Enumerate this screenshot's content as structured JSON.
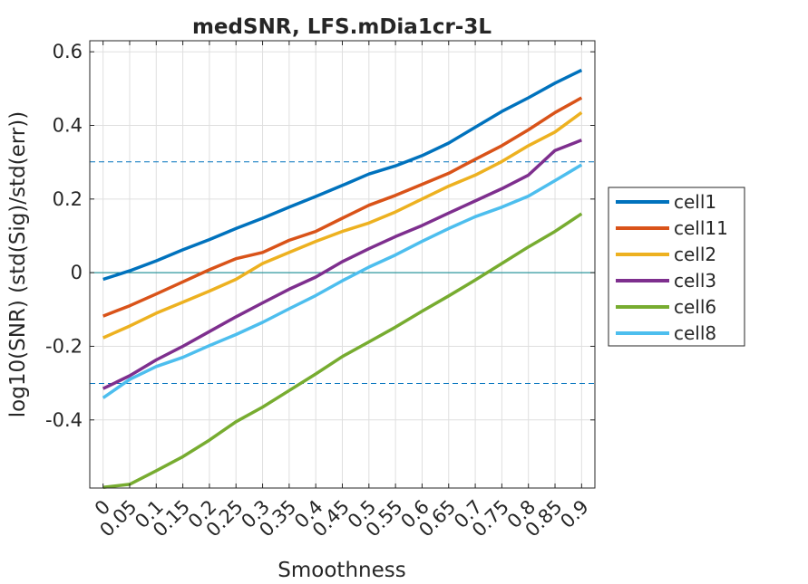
{
  "chart_data": {
    "type": "line",
    "title": "medSNR, LFS.mDia1cr-3L",
    "xlabel": "Smoothness",
    "ylabel": "log10(SNR) (std(Sig)/std(err))",
    "x": [
      0,
      0.05,
      0.1,
      0.15,
      0.2,
      0.25,
      0.3,
      0.35,
      0.4,
      0.45,
      0.5,
      0.55,
      0.6,
      0.65,
      0.7,
      0.75,
      0.8,
      0.85,
      0.9
    ],
    "xticklabels": [
      "0",
      "0.05",
      "0.1",
      "0.15",
      "0.2",
      "0.25",
      "0.3",
      "0.35",
      "0.4",
      "0.45",
      "0.5",
      "0.55",
      "0.6",
      "0.65",
      "0.7",
      "0.75",
      "0.8",
      "0.85",
      "0.9"
    ],
    "xlim": [
      -0.025,
      0.925
    ],
    "ylim": [
      -0.585,
      0.63
    ],
    "yticks": [
      -0.4,
      -0.2,
      0,
      0.2,
      0.4,
      0.6
    ],
    "yticklabels": [
      "-0.4",
      "-0.2",
      "0",
      "0.2",
      "0.4",
      "0.6"
    ],
    "grid": true,
    "legend_position": "outside-right",
    "reference_lines": [
      {
        "y": 0.301,
        "style": "dashed",
        "color": "#0072BD"
      },
      {
        "y": -0.301,
        "style": "dashed",
        "color": "#0072BD"
      },
      {
        "y": 0,
        "style": "solid",
        "color": "#00828A"
      }
    ],
    "series": [
      {
        "name": "cell1",
        "color": "#0072BD",
        "values": [
          -0.018,
          0.005,
          0.032,
          0.062,
          0.09,
          0.12,
          0.148,
          0.178,
          0.207,
          0.237,
          0.268,
          0.29,
          0.318,
          0.352,
          0.395,
          0.438,
          0.475,
          0.515,
          0.55
        ]
      },
      {
        "name": "cell11",
        "color": "#D95319",
        "values": [
          -0.118,
          -0.09,
          -0.058,
          -0.025,
          0.008,
          0.038,
          0.055,
          0.088,
          0.112,
          0.148,
          0.183,
          0.21,
          0.24,
          0.27,
          0.308,
          0.345,
          0.388,
          0.435,
          0.475
        ]
      },
      {
        "name": "cell2",
        "color": "#EDB120",
        "values": [
          -0.177,
          -0.145,
          -0.11,
          -0.08,
          -0.05,
          -0.018,
          0.025,
          0.055,
          0.085,
          0.112,
          0.135,
          0.165,
          0.2,
          0.235,
          0.265,
          0.302,
          0.345,
          0.382,
          0.435
        ]
      },
      {
        "name": "cell3",
        "color": "#7E2F8E",
        "values": [
          -0.315,
          -0.28,
          -0.237,
          -0.2,
          -0.16,
          -0.12,
          -0.082,
          -0.045,
          -0.012,
          0.03,
          0.065,
          0.098,
          0.128,
          0.162,
          0.195,
          0.228,
          0.265,
          0.332,
          0.36
        ]
      },
      {
        "name": "cell6",
        "color": "#77AC30",
        "values": [
          -0.583,
          -0.575,
          -0.538,
          -0.5,
          -0.455,
          -0.405,
          -0.365,
          -0.32,
          -0.275,
          -0.228,
          -0.188,
          -0.148,
          -0.105,
          -0.063,
          -0.02,
          0.025,
          0.07,
          0.112,
          0.16
        ]
      },
      {
        "name": "cell8",
        "color": "#4DBEEE",
        "values": [
          -0.34,
          -0.29,
          -0.255,
          -0.23,
          -0.198,
          -0.168,
          -0.135,
          -0.098,
          -0.062,
          -0.022,
          0.015,
          0.048,
          0.085,
          0.12,
          0.152,
          0.178,
          0.208,
          0.25,
          0.293
        ]
      }
    ]
  }
}
